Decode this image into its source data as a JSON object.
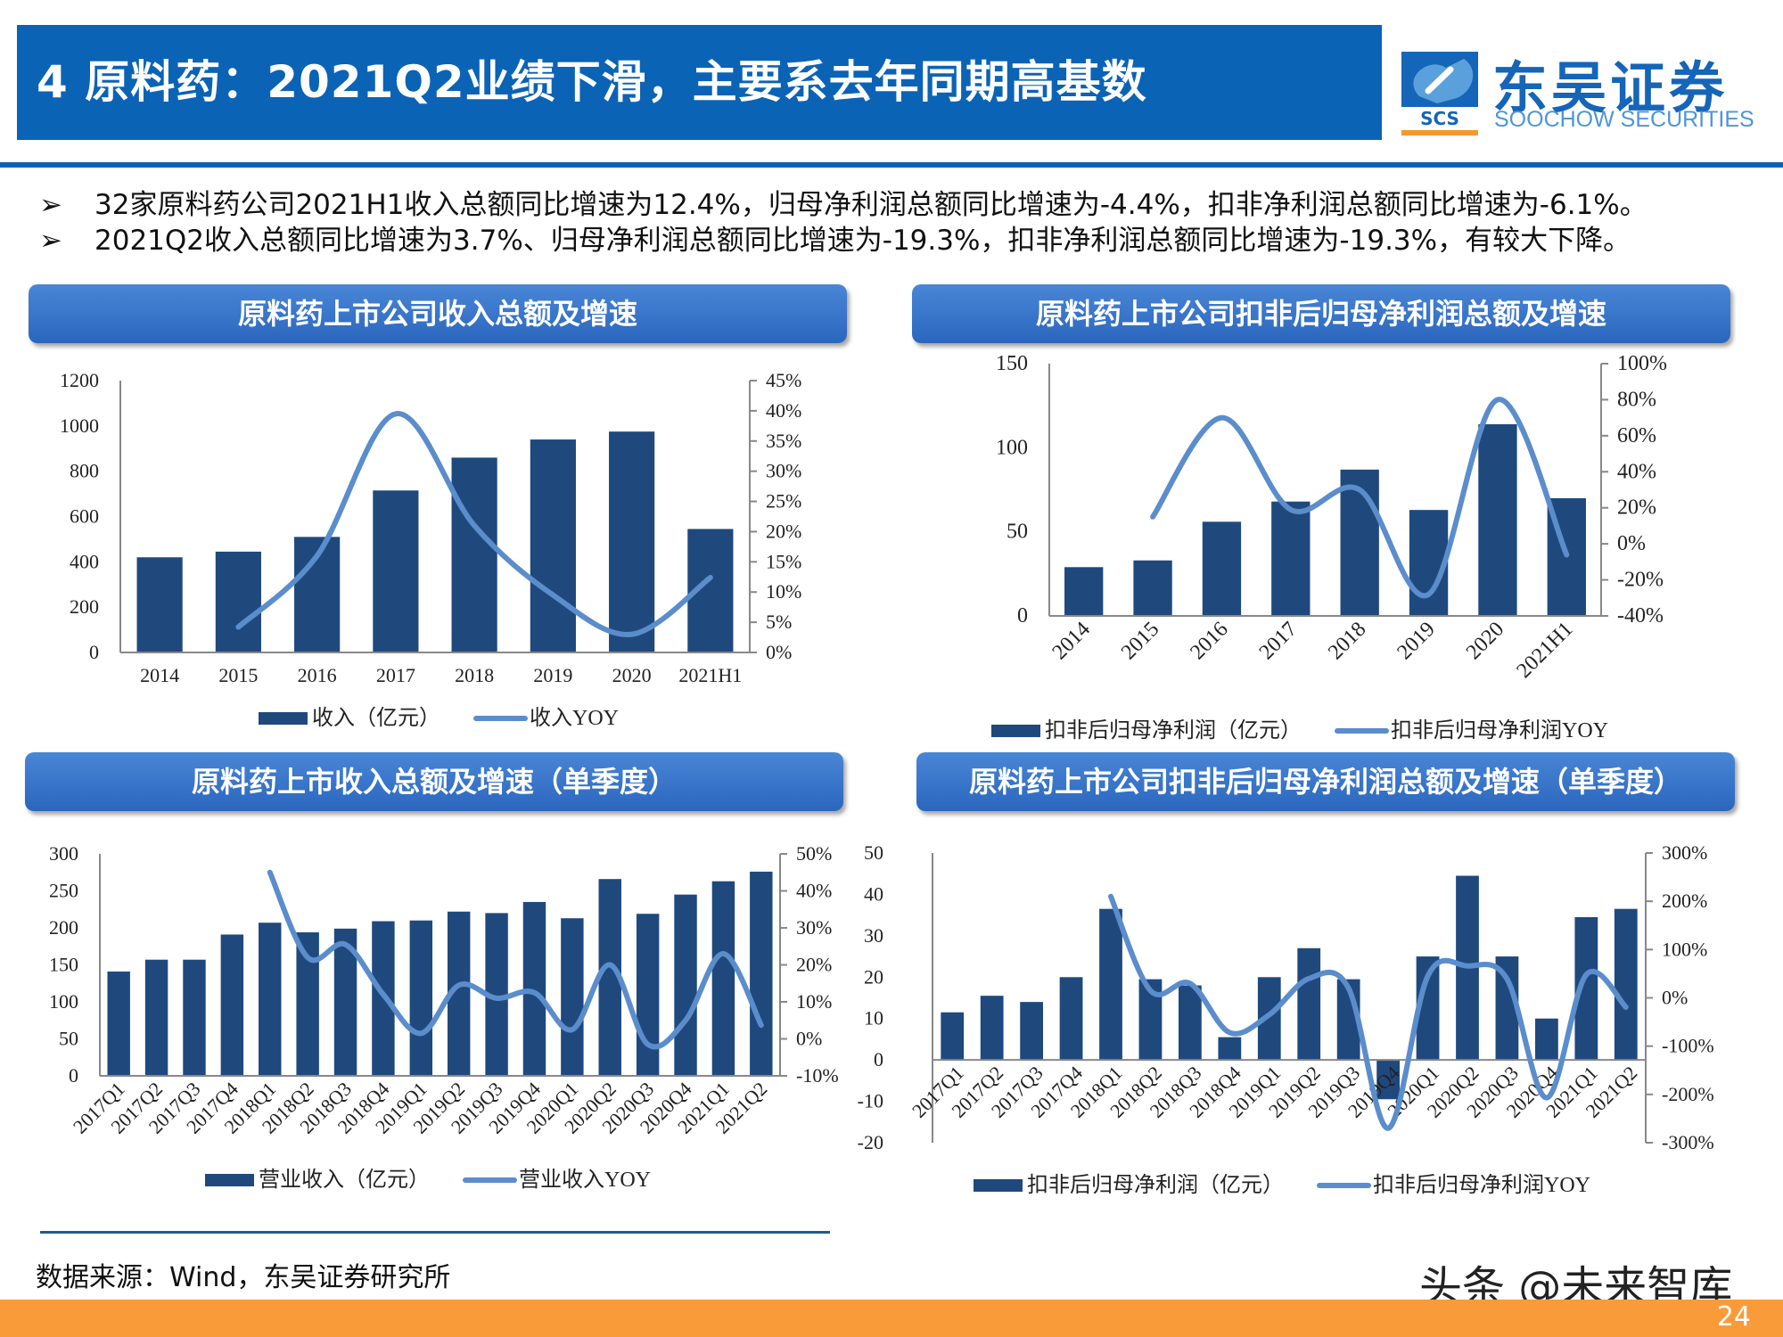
{
  "header": {
    "title": "4 原料药：2021Q2业绩下滑，主要系去年同期高基数"
  },
  "logo": {
    "cn": "东吴证券",
    "en": "SOOCHOW SECURITIES",
    "abbr": "SCS"
  },
  "bullets": [
    {
      "mark": "➢",
      "text": "32家原料药公司2021H1收入总额同比增速为12.4%，归母净利润总额同比增速为-4.4%，扣非净利润总额同比增速为-6.1%。"
    },
    {
      "mark": "➢",
      "text": "2021Q2收入总额同比增速为3.7%、归母净利润总额同比增速为-19.3%，扣非净利润总额同比增速为-19.3%，有较大下降。"
    }
  ],
  "colors": {
    "header": "#0b63b6",
    "bar": "#1f497d",
    "line": "#5b8dcc",
    "footer": "#f99b38"
  },
  "chart_data": [
    {
      "type": "bar+line",
      "title": "原料药上市公司收入总额及增速",
      "categories": [
        "2014",
        "2015",
        "2016",
        "2017",
        "2018",
        "2019",
        "2020",
        "2021H1"
      ],
      "series": [
        {
          "name": "收入（亿元）",
          "type": "bar",
          "axis": "left",
          "values": [
            420,
            445,
            510,
            715,
            860,
            940,
            975,
            545
          ]
        },
        {
          "name": "收入YOY",
          "type": "line",
          "axis": "right",
          "values": [
            null,
            4.2,
            16,
            39.5,
            21,
            9.5,
            3,
            12.4
          ]
        }
      ],
      "ylim_left": [
        0,
        1200
      ],
      "ylim_right": [
        0,
        45
      ],
      "yticks_left": [
        "0",
        "200",
        "400",
        "600",
        "800",
        "1000",
        "1200"
      ],
      "yticks_right": [
        "0%",
        "5%",
        "10%",
        "15%",
        "20%",
        "25%",
        "30%",
        "35%",
        "40%",
        "45%"
      ],
      "legend": "bottom",
      "grid": false
    },
    {
      "type": "bar+line",
      "title": "原料药上市公司扣非后归母净利润总额及增速",
      "categories": [
        "2014",
        "2015",
        "2016",
        "2017",
        "2018",
        "2019",
        "2020",
        "2021H1"
      ],
      "series": [
        {
          "name": "扣非后归母净利润（亿元）",
          "type": "bar",
          "axis": "left",
          "values": [
            29,
            33,
            56,
            68,
            87,
            63,
            114,
            70
          ]
        },
        {
          "name": "扣非后归母净利润YOY",
          "type": "line",
          "axis": "right",
          "values": [
            null,
            15,
            70,
            19,
            30,
            -28,
            80,
            -6.1
          ]
        }
      ],
      "ylim_left": [
        0,
        150
      ],
      "ylim_right": [
        -40,
        100
      ],
      "yticks_left": [
        "0",
        "50",
        "100",
        "150"
      ],
      "yticks_right": [
        "-40%",
        "-20%",
        "0%",
        "20%",
        "40%",
        "60%",
        "80%",
        "100%"
      ],
      "legend": "bottom",
      "grid": false
    },
    {
      "type": "bar+line",
      "title": "原料药上市收入总额及增速（单季度）",
      "categories": [
        "2017Q1",
        "2017Q2",
        "2017Q3",
        "2017Q4",
        "2018Q1",
        "2018Q2",
        "2018Q3",
        "2018Q4",
        "2019Q1",
        "2019Q2",
        "2019Q3",
        "2019Q4",
        "2020Q1",
        "2020Q2",
        "2020Q3",
        "2020Q4",
        "2021Q1",
        "2021Q2"
      ],
      "series": [
        {
          "name": "营业收入（亿元）",
          "type": "bar",
          "axis": "left",
          "values": [
            141,
            157,
            157,
            191,
            207,
            194,
            199,
            209,
            210,
            222,
            220,
            235,
            213,
            266,
            219,
            245,
            263,
            276
          ]
        },
        {
          "name": "营业收入YOY",
          "type": "line",
          "axis": "right",
          "values": [
            null,
            null,
            null,
            null,
            45,
            22,
            25.5,
            12,
            1.5,
            14.5,
            11,
            12.5,
            2.5,
            20,
            -1.5,
            5,
            23,
            3.7
          ]
        }
      ],
      "ylim_left": [
        0,
        300
      ],
      "ylim_right": [
        -10,
        50
      ],
      "yticks_left": [
        "0",
        "50",
        "100",
        "150",
        "200",
        "250",
        "300"
      ],
      "yticks_right": [
        "-10%",
        "0%",
        "10%",
        "20%",
        "30%",
        "40%",
        "50%"
      ],
      "legend": "bottom",
      "grid": false
    },
    {
      "type": "bar+line",
      "title": "原料药上市公司扣非后归母净利润总额及增速（单季度）",
      "categories": [
        "2017Q1",
        "2017Q2",
        "2017Q3",
        "2017Q4",
        "2018Q1",
        "2018Q2",
        "2018Q3",
        "2018Q4",
        "2019Q1",
        "2019Q2",
        "2019Q3",
        "2019Q4",
        "2020Q1",
        "2020Q2",
        "2020Q3",
        "2020Q4",
        "2021Q1",
        "2021Q2"
      ],
      "series": [
        {
          "name": "扣非后归母净利润（亿元）",
          "type": "bar",
          "axis": "left",
          "values": [
            11.5,
            15.5,
            14,
            20,
            36.5,
            19.5,
            18,
            5.5,
            20,
            27,
            19.5,
            -9.5,
            25,
            44.5,
            25,
            10,
            34.5,
            36.5
          ]
        },
        {
          "name": "扣非后归母净利润YOY",
          "type": "line",
          "axis": "right",
          "values": [
            null,
            null,
            null,
            null,
            210,
            15,
            30,
            -72,
            -35,
            40,
            20,
            -270,
            45,
            66,
            39,
            -207,
            48,
            -19.3
          ]
        }
      ],
      "ylim_left": [
        -20,
        50
      ],
      "ylim_right": [
        -300,
        300
      ],
      "yticks_left": [
        "-20",
        "-10",
        "0",
        "10",
        "20",
        "30",
        "40",
        "50"
      ],
      "yticks_right": [
        "-300%",
        "-200%",
        "-100%",
        "0%",
        "100%",
        "200%",
        "300%"
      ],
      "legend": "bottom",
      "grid": false
    }
  ],
  "footer": {
    "source": "数据来源：Wind，东吴证券研究所",
    "watermark": "头条 @未来智库",
    "page": "24"
  }
}
